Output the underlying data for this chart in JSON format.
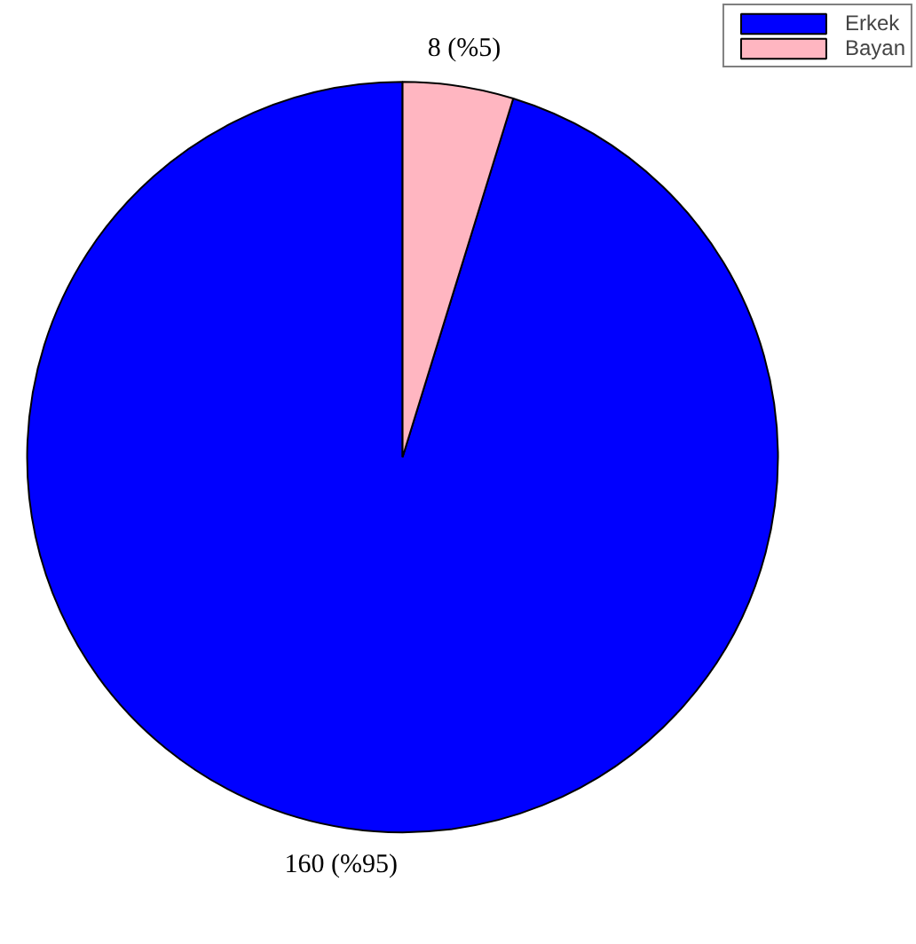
{
  "chart_data": {
    "type": "pie",
    "categories": [
      "Erkek",
      "Bayan"
    ],
    "values": [
      160,
      8
    ],
    "colors": [
      "#0000ff",
      "#ffb6c1"
    ],
    "value_labels": [
      "160 (%95)",
      "8 (%5)"
    ],
    "legend": "top right"
  }
}
